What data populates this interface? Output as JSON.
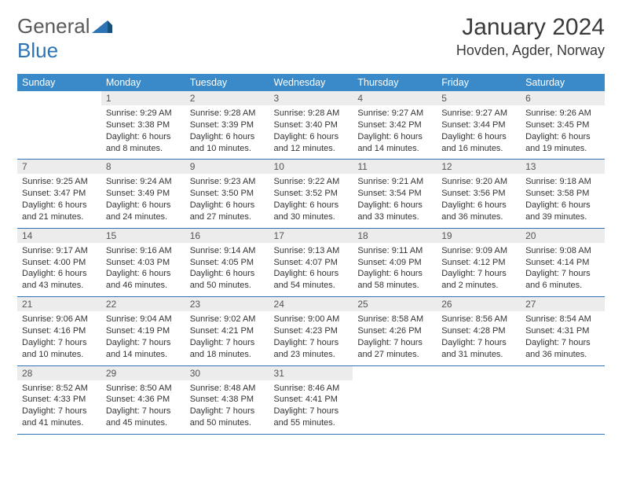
{
  "logo": {
    "text1": "General",
    "text2": "Blue"
  },
  "title": "January 2024",
  "location": "Hovden, Agder, Norway",
  "colors": {
    "header_bg": "#3a8ac9",
    "header_text": "#ffffff",
    "daynum_bg": "#ececec",
    "divider": "#2d74b5",
    "body_text": "#333333",
    "logo_gray": "#5a5a5a",
    "logo_blue": "#2d74b5"
  },
  "day_names": [
    "Sunday",
    "Monday",
    "Tuesday",
    "Wednesday",
    "Thursday",
    "Friday",
    "Saturday"
  ],
  "weeks": [
    [
      null,
      {
        "n": "1",
        "sr": "Sunrise: 9:29 AM",
        "ss": "Sunset: 3:38 PM",
        "d1": "Daylight: 6 hours",
        "d2": "and 8 minutes."
      },
      {
        "n": "2",
        "sr": "Sunrise: 9:28 AM",
        "ss": "Sunset: 3:39 PM",
        "d1": "Daylight: 6 hours",
        "d2": "and 10 minutes."
      },
      {
        "n": "3",
        "sr": "Sunrise: 9:28 AM",
        "ss": "Sunset: 3:40 PM",
        "d1": "Daylight: 6 hours",
        "d2": "and 12 minutes."
      },
      {
        "n": "4",
        "sr": "Sunrise: 9:27 AM",
        "ss": "Sunset: 3:42 PM",
        "d1": "Daylight: 6 hours",
        "d2": "and 14 minutes."
      },
      {
        "n": "5",
        "sr": "Sunrise: 9:27 AM",
        "ss": "Sunset: 3:44 PM",
        "d1": "Daylight: 6 hours",
        "d2": "and 16 minutes."
      },
      {
        "n": "6",
        "sr": "Sunrise: 9:26 AM",
        "ss": "Sunset: 3:45 PM",
        "d1": "Daylight: 6 hours",
        "d2": "and 19 minutes."
      }
    ],
    [
      {
        "n": "7",
        "sr": "Sunrise: 9:25 AM",
        "ss": "Sunset: 3:47 PM",
        "d1": "Daylight: 6 hours",
        "d2": "and 21 minutes."
      },
      {
        "n": "8",
        "sr": "Sunrise: 9:24 AM",
        "ss": "Sunset: 3:49 PM",
        "d1": "Daylight: 6 hours",
        "d2": "and 24 minutes."
      },
      {
        "n": "9",
        "sr": "Sunrise: 9:23 AM",
        "ss": "Sunset: 3:50 PM",
        "d1": "Daylight: 6 hours",
        "d2": "and 27 minutes."
      },
      {
        "n": "10",
        "sr": "Sunrise: 9:22 AM",
        "ss": "Sunset: 3:52 PM",
        "d1": "Daylight: 6 hours",
        "d2": "and 30 minutes."
      },
      {
        "n": "11",
        "sr": "Sunrise: 9:21 AM",
        "ss": "Sunset: 3:54 PM",
        "d1": "Daylight: 6 hours",
        "d2": "and 33 minutes."
      },
      {
        "n": "12",
        "sr": "Sunrise: 9:20 AM",
        "ss": "Sunset: 3:56 PM",
        "d1": "Daylight: 6 hours",
        "d2": "and 36 minutes."
      },
      {
        "n": "13",
        "sr": "Sunrise: 9:18 AM",
        "ss": "Sunset: 3:58 PM",
        "d1": "Daylight: 6 hours",
        "d2": "and 39 minutes."
      }
    ],
    [
      {
        "n": "14",
        "sr": "Sunrise: 9:17 AM",
        "ss": "Sunset: 4:00 PM",
        "d1": "Daylight: 6 hours",
        "d2": "and 43 minutes."
      },
      {
        "n": "15",
        "sr": "Sunrise: 9:16 AM",
        "ss": "Sunset: 4:03 PM",
        "d1": "Daylight: 6 hours",
        "d2": "and 46 minutes."
      },
      {
        "n": "16",
        "sr": "Sunrise: 9:14 AM",
        "ss": "Sunset: 4:05 PM",
        "d1": "Daylight: 6 hours",
        "d2": "and 50 minutes."
      },
      {
        "n": "17",
        "sr": "Sunrise: 9:13 AM",
        "ss": "Sunset: 4:07 PM",
        "d1": "Daylight: 6 hours",
        "d2": "and 54 minutes."
      },
      {
        "n": "18",
        "sr": "Sunrise: 9:11 AM",
        "ss": "Sunset: 4:09 PM",
        "d1": "Daylight: 6 hours",
        "d2": "and 58 minutes."
      },
      {
        "n": "19",
        "sr": "Sunrise: 9:09 AM",
        "ss": "Sunset: 4:12 PM",
        "d1": "Daylight: 7 hours",
        "d2": "and 2 minutes."
      },
      {
        "n": "20",
        "sr": "Sunrise: 9:08 AM",
        "ss": "Sunset: 4:14 PM",
        "d1": "Daylight: 7 hours",
        "d2": "and 6 minutes."
      }
    ],
    [
      {
        "n": "21",
        "sr": "Sunrise: 9:06 AM",
        "ss": "Sunset: 4:16 PM",
        "d1": "Daylight: 7 hours",
        "d2": "and 10 minutes."
      },
      {
        "n": "22",
        "sr": "Sunrise: 9:04 AM",
        "ss": "Sunset: 4:19 PM",
        "d1": "Daylight: 7 hours",
        "d2": "and 14 minutes."
      },
      {
        "n": "23",
        "sr": "Sunrise: 9:02 AM",
        "ss": "Sunset: 4:21 PM",
        "d1": "Daylight: 7 hours",
        "d2": "and 18 minutes."
      },
      {
        "n": "24",
        "sr": "Sunrise: 9:00 AM",
        "ss": "Sunset: 4:23 PM",
        "d1": "Daylight: 7 hours",
        "d2": "and 23 minutes."
      },
      {
        "n": "25",
        "sr": "Sunrise: 8:58 AM",
        "ss": "Sunset: 4:26 PM",
        "d1": "Daylight: 7 hours",
        "d2": "and 27 minutes."
      },
      {
        "n": "26",
        "sr": "Sunrise: 8:56 AM",
        "ss": "Sunset: 4:28 PM",
        "d1": "Daylight: 7 hours",
        "d2": "and 31 minutes."
      },
      {
        "n": "27",
        "sr": "Sunrise: 8:54 AM",
        "ss": "Sunset: 4:31 PM",
        "d1": "Daylight: 7 hours",
        "d2": "and 36 minutes."
      }
    ],
    [
      {
        "n": "28",
        "sr": "Sunrise: 8:52 AM",
        "ss": "Sunset: 4:33 PM",
        "d1": "Daylight: 7 hours",
        "d2": "and 41 minutes."
      },
      {
        "n": "29",
        "sr": "Sunrise: 8:50 AM",
        "ss": "Sunset: 4:36 PM",
        "d1": "Daylight: 7 hours",
        "d2": "and 45 minutes."
      },
      {
        "n": "30",
        "sr": "Sunrise: 8:48 AM",
        "ss": "Sunset: 4:38 PM",
        "d1": "Daylight: 7 hours",
        "d2": "and 50 minutes."
      },
      {
        "n": "31",
        "sr": "Sunrise: 8:46 AM",
        "ss": "Sunset: 4:41 PM",
        "d1": "Daylight: 7 hours",
        "d2": "and 55 minutes."
      },
      null,
      null,
      null
    ]
  ]
}
